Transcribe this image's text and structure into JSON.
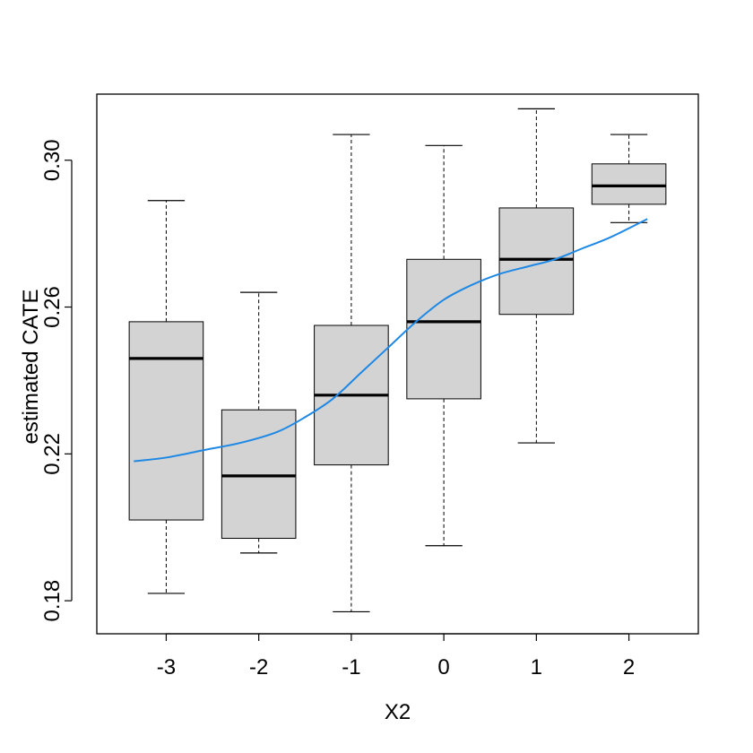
{
  "chart_data": {
    "type": "box",
    "title": "",
    "xlabel": "X2",
    "ylabel": "estimated CATE",
    "categories": [
      "-3",
      "-2",
      "-1",
      "0",
      "1",
      "2"
    ],
    "yticks": [
      0.18,
      0.22,
      0.26,
      0.3
    ],
    "ytick_labels": [
      "0.18",
      "0.22",
      "0.26",
      "0.30"
    ],
    "ylim": [
      0.171,
      0.318
    ],
    "xlim": [
      -3.75,
      2.75
    ],
    "boxes": [
      {
        "category": "-3",
        "min": 0.182,
        "q1": 0.202,
        "median": 0.246,
        "q3": 0.256,
        "max": 0.289
      },
      {
        "category": "-2",
        "min": 0.193,
        "q1": 0.197,
        "median": 0.214,
        "q3": 0.232,
        "max": 0.264
      },
      {
        "category": "-1",
        "min": 0.177,
        "q1": 0.217,
        "median": 0.236,
        "q3": 0.255,
        "max": 0.307
      },
      {
        "category": "0",
        "min": 0.195,
        "q1": 0.235,
        "median": 0.256,
        "q3": 0.273,
        "max": 0.304
      },
      {
        "category": "1",
        "min": 0.223,
        "q1": 0.258,
        "median": 0.273,
        "q3": 0.287,
        "max": 0.314
      },
      {
        "category": "2",
        "min": 0.283,
        "q1": 0.288,
        "median": 0.293,
        "q3": 0.299,
        "max": 0.307
      }
    ],
    "trend_line": {
      "color": "#1E88E5",
      "x": [
        -3.35,
        -3.0,
        -2.6,
        -2.2,
        -1.8,
        -1.5,
        -1.2,
        -0.9,
        -0.6,
        -0.3,
        0.0,
        0.3,
        0.6,
        0.9,
        1.2,
        1.5,
        1.8,
        2.2
      ],
      "y": [
        0.218,
        0.219,
        0.221,
        0.223,
        0.226,
        0.23,
        0.235,
        0.242,
        0.249,
        0.256,
        0.262,
        0.266,
        0.269,
        0.271,
        0.273,
        0.276,
        0.279,
        0.284
      ]
    },
    "box_fill": "#D3D3D3",
    "grid": false,
    "legend": "none"
  }
}
